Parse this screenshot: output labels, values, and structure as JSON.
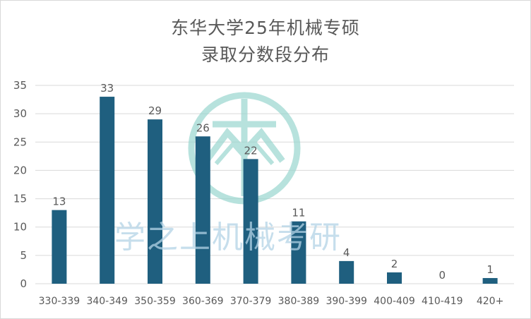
{
  "chart_data": {
    "type": "bar",
    "title_lines": [
      "东华大学25年机械专硕",
      "录取分数段分布"
    ],
    "categories": [
      "330-339",
      "340-349",
      "350-359",
      "360-369",
      "370-379",
      "380-389",
      "390-399",
      "400-409",
      "410-419",
      "420+"
    ],
    "values": [
      13,
      33,
      29,
      26,
      22,
      11,
      4,
      2,
      0,
      1
    ],
    "ylim": [
      0,
      35
    ],
    "yticks": [
      0,
      5,
      10,
      15,
      20,
      25,
      30,
      35
    ],
    "grid": true,
    "legend": "none",
    "data_labels": true
  },
  "colors": {
    "bar": "#1f5f7f",
    "grid": "#d9d9d9",
    "text": "#595959",
    "watermark": "#99d6cf"
  },
  "watermark": {
    "text": "学之上机械考研",
    "icon": "university-logo-icon"
  }
}
